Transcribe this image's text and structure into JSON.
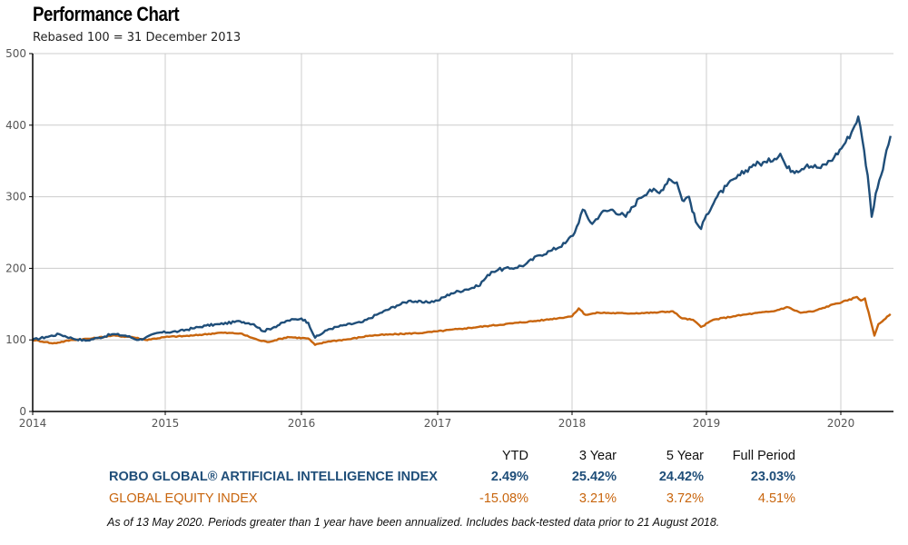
{
  "header": {
    "title": "Performance Chart",
    "subtitle": "Rebased 100 = 31 December 2013"
  },
  "chart_data": {
    "type": "line",
    "title": "Performance Chart",
    "subtitle": "Rebased 100 = 31 December 2013",
    "xlabel": "",
    "ylabel": "",
    "xlim": [
      2014.0,
      2020.37
    ],
    "ylim": [
      0,
      500
    ],
    "x_ticks": [
      2014,
      2015,
      2016,
      2017,
      2018,
      2019,
      2020
    ],
    "x_tick_labels": [
      "2014",
      "2015",
      "2016",
      "2017",
      "2018",
      "2019",
      "2020"
    ],
    "y_ticks": [
      0,
      100,
      200,
      300,
      400,
      500
    ],
    "y_tick_labels": [
      "0",
      "100",
      "200",
      "300",
      "400",
      "500"
    ],
    "grid": true,
    "legend": "none",
    "series": [
      {
        "name": "ROBO GLOBAL® ARTIFICIAL INTELLIGENCE INDEX",
        "color": "#1f4e79",
        "x": [
          2014.0,
          2014.1,
          2014.2,
          2014.3,
          2014.4,
          2014.5,
          2014.6,
          2014.7,
          2014.8,
          2014.85,
          2014.95,
          2015.1,
          2015.2,
          2015.3,
          2015.4,
          2015.55,
          2015.65,
          2015.72,
          2015.8,
          2015.9,
          2016.0,
          2016.05,
          2016.1,
          2016.2,
          2016.3,
          2016.45,
          2016.55,
          2016.7,
          2016.8,
          2016.9,
          2017.0,
          2017.1,
          2017.2,
          2017.3,
          2017.4,
          2017.45,
          2017.55,
          2017.65,
          2017.75,
          2017.85,
          2017.95,
          2018.02,
          2018.08,
          2018.15,
          2018.22,
          2018.3,
          2018.4,
          2018.5,
          2018.58,
          2018.65,
          2018.72,
          2018.78,
          2018.82,
          2018.87,
          2018.92,
          2018.96,
          2019.0,
          2019.08,
          2019.15,
          2019.25,
          2019.35,
          2019.45,
          2019.55,
          2019.6,
          2019.67,
          2019.75,
          2019.85,
          2019.95,
          2020.02,
          2020.08,
          2020.13,
          2020.16,
          2020.2,
          2020.23,
          2020.26,
          2020.3,
          2020.34,
          2020.37
        ],
        "y": [
          100,
          104,
          108,
          102,
          99,
          103,
          108,
          106,
          100,
          103,
          110,
          112,
          116,
          120,
          122,
          126,
          122,
          112,
          118,
          127,
          130,
          124,
          103,
          115,
          120,
          125,
          135,
          148,
          155,
          152,
          155,
          165,
          170,
          175,
          195,
          198,
          200,
          205,
          218,
          225,
          235,
          250,
          282,
          262,
          278,
          282,
          272,
          298,
          310,
          305,
          325,
          320,
          295,
          300,
          265,
          255,
          275,
          300,
          315,
          330,
          345,
          348,
          360,
          340,
          336,
          345,
          340,
          355,
          372,
          390,
          412,
          380,
          330,
          272,
          305,
          330,
          365,
          385
        ]
      },
      {
        "name": "GLOBAL EQUITY INDEX",
        "color": "#c8650d",
        "x": [
          2014.0,
          2014.1,
          2014.15,
          2014.3,
          2014.45,
          2014.6,
          2014.75,
          2014.85,
          2015.0,
          2015.2,
          2015.4,
          2015.55,
          2015.68,
          2015.75,
          2015.9,
          2016.05,
          2016.1,
          2016.2,
          2016.35,
          2016.5,
          2016.7,
          2016.9,
          2017.0,
          2017.2,
          2017.4,
          2017.6,
          2017.8,
          2018.0,
          2018.05,
          2018.1,
          2018.2,
          2018.4,
          2018.6,
          2018.75,
          2018.82,
          2018.9,
          2018.96,
          2019.05,
          2019.2,
          2019.35,
          2019.5,
          2019.6,
          2019.7,
          2019.8,
          2019.95,
          2020.05,
          2020.12,
          2020.15,
          2020.18,
          2020.22,
          2020.25,
          2020.28,
          2020.32,
          2020.37
        ],
        "y": [
          100,
          97,
          95,
          100,
          102,
          106,
          104,
          100,
          104,
          106,
          110,
          109,
          100,
          97,
          104,
          102,
          93,
          98,
          101,
          106,
          108,
          110,
          112,
          116,
          120,
          124,
          128,
          133,
          144,
          135,
          138,
          137,
          138,
          140,
          130,
          128,
          118,
          128,
          133,
          137,
          140,
          146,
          138,
          140,
          150,
          155,
          160,
          155,
          158,
          128,
          106,
          122,
          128,
          136
        ]
      }
    ]
  },
  "performance_table": {
    "headers": [
      "YTD",
      "3 Year",
      "5 Year",
      "Full Period"
    ],
    "rows": [
      {
        "name": "ROBO GLOBAL® ARTIFICIAL INTELLIGENCE INDEX",
        "values": [
          "2.49%",
          "25.42%",
          "24.42%",
          "23.03%"
        ],
        "color": "#1f4e79"
      },
      {
        "name": "GLOBAL EQUITY INDEX",
        "values": [
          "-15.08%",
          "3.21%",
          "3.72%",
          "4.51%"
        ],
        "color": "#c8650d"
      }
    ]
  },
  "footnote": "As of 13 May 2020. Periods greater than 1 year have been annualized. Includes back-tested data prior to 21 August 2018."
}
